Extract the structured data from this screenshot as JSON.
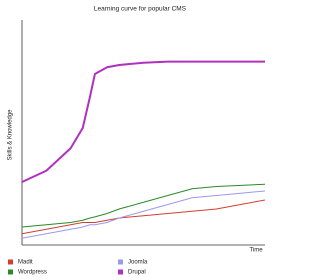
{
  "chart_data": {
    "type": "line",
    "title": "Learning curve for popular CMS",
    "x_label": "Time",
    "y_label": "Skills & Knowledge",
    "x": [
      0,
      10,
      20,
      25,
      28,
      30,
      35,
      40,
      50,
      60,
      70,
      80,
      90,
      100
    ],
    "xlim": [
      0,
      100
    ],
    "ylim": [
      0,
      100
    ],
    "legend": "bottom",
    "series": [
      {
        "name": "Madit",
        "color": "#d04030",
        "values": [
          5,
          7,
          9,
          10,
          10,
          10,
          11,
          12,
          13,
          14,
          15,
          16,
          18,
          20
        ]
      },
      {
        "name": "Joomla",
        "color": "#9999ee",
        "values": [
          3,
          5,
          7,
          8,
          9,
          9,
          10,
          12,
          15,
          18,
          21,
          22,
          23,
          24
        ]
      },
      {
        "name": "Wordpress",
        "color": "#2a8a2a",
        "values": [
          8,
          9,
          10,
          11,
          12,
          12.5,
          14,
          16,
          19,
          22,
          25,
          26,
          26.5,
          27
        ]
      },
      {
        "name": "Drupal",
        "color": "#b030c0",
        "values": [
          28,
          33,
          43,
          52,
          66,
          76,
          79,
          80,
          81,
          81.5,
          81.5,
          81.5,
          81.5,
          81.5
        ]
      }
    ]
  }
}
